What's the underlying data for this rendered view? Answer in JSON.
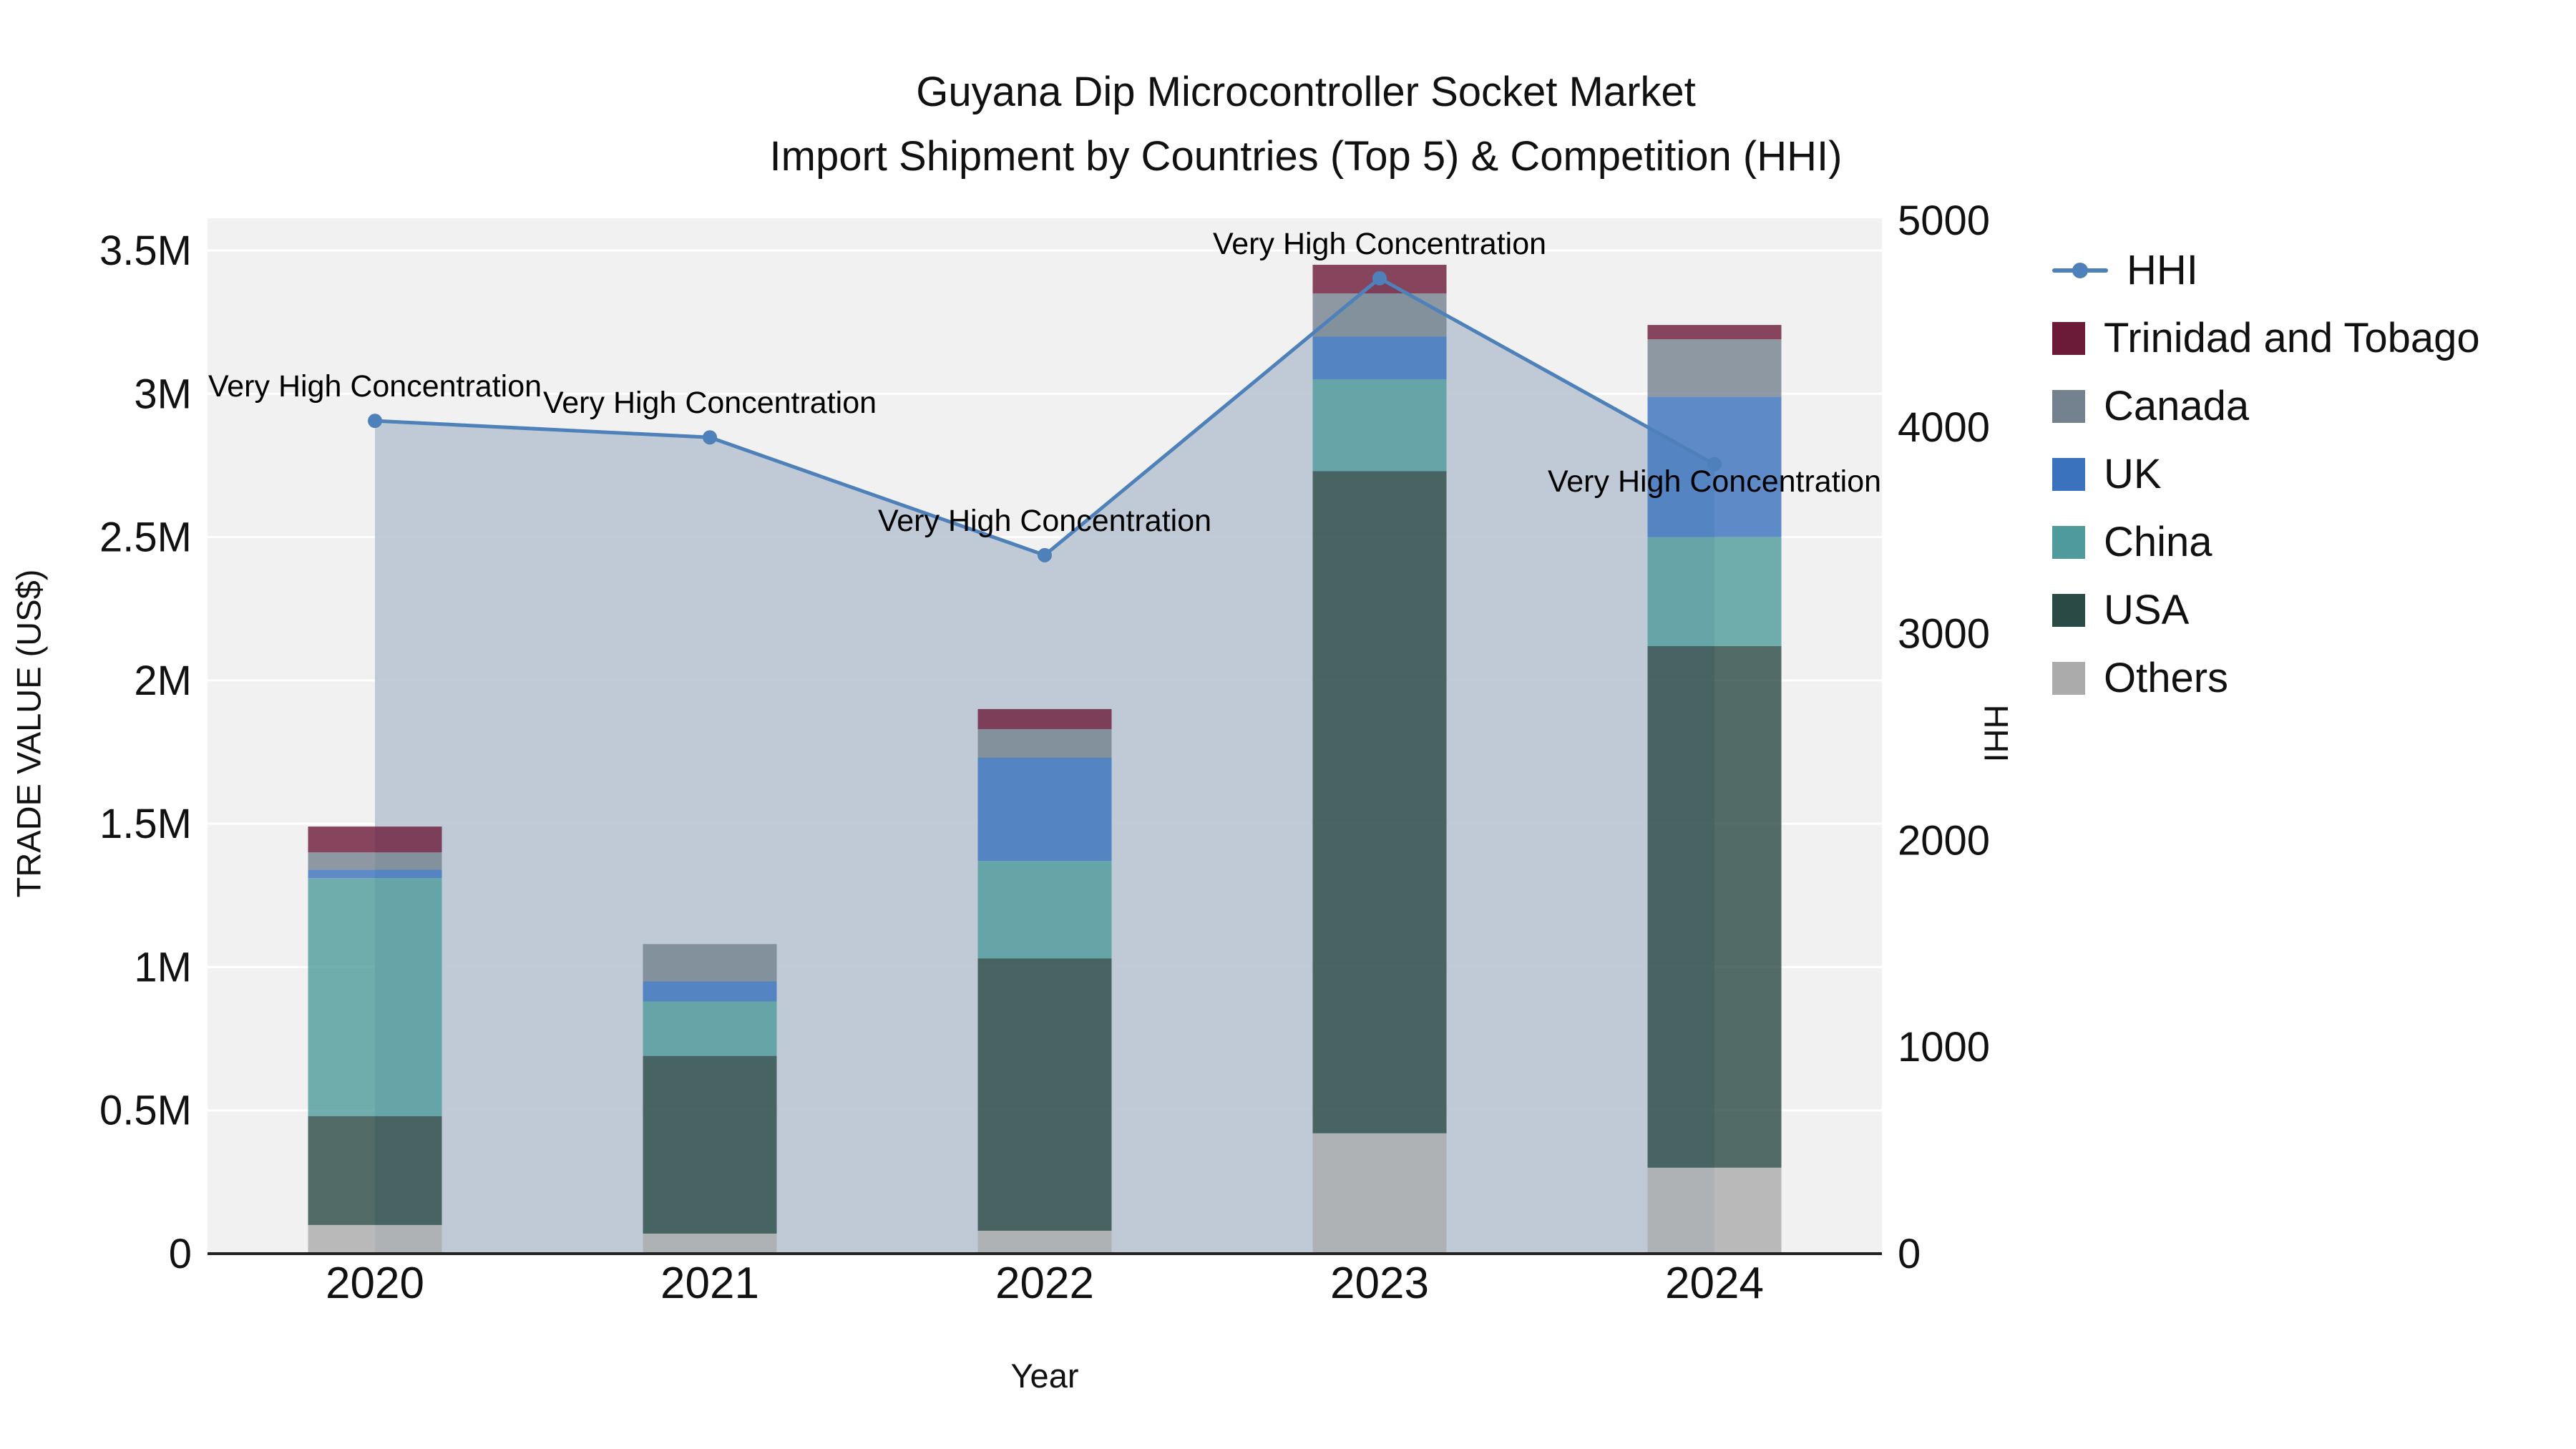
{
  "title_line1": "Guyana Dip Microcontroller Socket Market",
  "title_line2": "Import Shipment by Countries (Top 5) & Competition (HHI)",
  "chart_data": {
    "type": "bar",
    "subtype": "stacked-bars-with-line-overlay",
    "categories": [
      "2020",
      "2021",
      "2022",
      "2023",
      "2024"
    ],
    "xlabel": "Year",
    "ylabel_left": "TRADE VALUE (US$)",
    "ylabel_right": "HHI",
    "y_left_ticks": [
      "0",
      "0.5M",
      "1M",
      "1.5M",
      "2M",
      "2.5M",
      "3M",
      "3.5M"
    ],
    "y_left_tick_step": 500000,
    "y_left_max": 3500000,
    "y_right_ticks": [
      "0",
      "1000",
      "2000",
      "3000",
      "4000",
      "5000"
    ],
    "y_right_tick_step": 1000,
    "y_right_max": 5000,
    "grid": true,
    "plot_background": "#f1f1f1",
    "legend_position": "right",
    "series": [
      {
        "name": "Others",
        "color": "#ababab",
        "values": [
          100000,
          70000,
          80000,
          420000,
          300000
        ]
      },
      {
        "name": "USA",
        "color": "#2a4a45",
        "values": [
          380000,
          620000,
          950000,
          2310000,
          1820000
        ]
      },
      {
        "name": "China",
        "color": "#4f9b9b",
        "values": [
          830000,
          190000,
          340000,
          320000,
          380000
        ]
      },
      {
        "name": "UK",
        "color": "#3a72bd",
        "values": [
          30000,
          70000,
          360000,
          150000,
          490000
        ]
      },
      {
        "name": "Canada",
        "color": "#74828f",
        "values": [
          60000,
          130000,
          100000,
          150000,
          200000
        ]
      },
      {
        "name": "Trinidad and Tobago",
        "color": "#6b1a38",
        "values": [
          90000,
          0,
          70000,
          100000,
          50000
        ]
      }
    ],
    "line_series": {
      "name": "HHI",
      "color": "#4e81ba",
      "fill_color": "#b9c5d3",
      "values": [
        4030,
        3950,
        3380,
        4720,
        3820
      ]
    },
    "annotations": [
      "Very High Concentration",
      "Very High Concentration",
      "Very High Concentration",
      "Very High Concentration",
      "Very High Concentration"
    ],
    "legend": [
      "HHI",
      "Trinidad and Tobago",
      "Canada",
      "UK",
      "China",
      "USA",
      "Others"
    ]
  }
}
